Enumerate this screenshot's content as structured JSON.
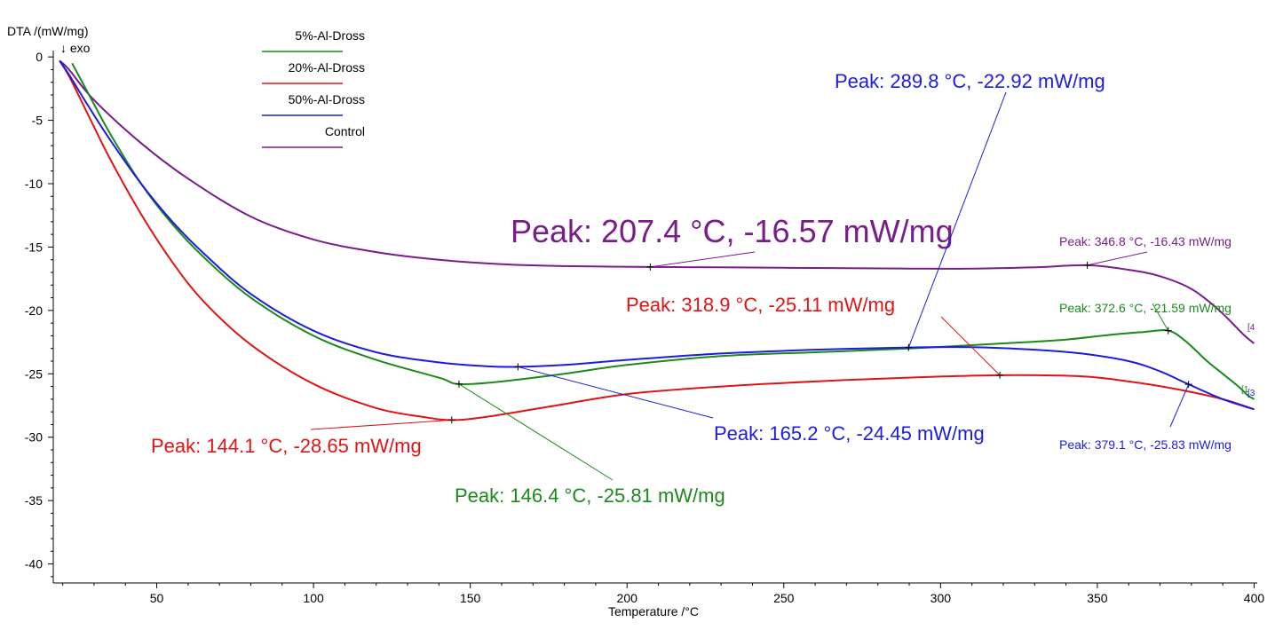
{
  "chart_data": {
    "type": "line",
    "title": "",
    "ylabel": "DTA /(mW/mg)",
    "ylabel_note": "↓ exo",
    "xlabel": "Temperature /°C",
    "xlim": [
      17,
      401
    ],
    "ylim": [
      -41.5,
      0.5
    ],
    "x_ticks": [
      50,
      100,
      150,
      200,
      250,
      300,
      350,
      400
    ],
    "y_ticks": [
      0,
      -5,
      -10,
      -15,
      -20,
      -25,
      -30,
      -35,
      -40
    ],
    "legend_position": "top-left",
    "series": [
      {
        "name": "5%-Al-Dross",
        "color": "#1a8a1a",
        "x": [
          23,
          28,
          35,
          45,
          55,
          65,
          80,
          100,
          120,
          140,
          146.4,
          160,
          180,
          200,
          230,
          260,
          290,
          320,
          340,
          355,
          365,
          372.6,
          378,
          385,
          390,
          395,
          398,
          400
        ],
        "y": [
          -0.5,
          -2.8,
          -6,
          -10,
          -13.2,
          -15.8,
          -19,
          -22,
          -23.9,
          -25.3,
          -25.81,
          -25.6,
          -25,
          -24.3,
          -23.6,
          -23.3,
          -23.0,
          -22.6,
          -22.3,
          -21.9,
          -21.7,
          -21.59,
          -22.4,
          -24.0,
          -25.0,
          -26.0,
          -26.7,
          -27.0
        ]
      },
      {
        "name": "20%-Al-Dross",
        "color": "#e01414",
        "x": [
          19,
          22,
          28,
          35,
          45,
          55,
          65,
          80,
          100,
          120,
          135,
          144.1,
          155,
          175,
          200,
          230,
          260,
          290,
          318.9,
          345,
          360,
          375,
          390,
          400
        ],
        "y": [
          -0.3,
          -1.5,
          -4.5,
          -8,
          -12.4,
          -16.2,
          -19.3,
          -22.7,
          -25.8,
          -27.7,
          -28.4,
          -28.65,
          -28.4,
          -27.6,
          -26.6,
          -26.0,
          -25.6,
          -25.3,
          -25.11,
          -25.2,
          -25.6,
          -26.2,
          -27.0,
          -27.8
        ]
      },
      {
        "name": "50%-Al-Dross",
        "color": "#1c1ce0",
        "x": [
          19,
          22,
          28,
          35,
          45,
          55,
          65,
          80,
          100,
          120,
          140,
          155,
          165.2,
          180,
          200,
          230,
          260,
          289.8,
          310,
          330,
          345,
          360,
          370,
          379.1,
          390,
          400
        ],
        "y": [
          -0.3,
          -1.4,
          -3.8,
          -6.5,
          -10,
          -13,
          -15.5,
          -18.7,
          -21.6,
          -23.3,
          -24.1,
          -24.4,
          -24.45,
          -24.3,
          -23.9,
          -23.4,
          -23.1,
          -22.92,
          -22.9,
          -23.1,
          -23.4,
          -24.0,
          -24.8,
          -25.83,
          -27.0,
          -27.8
        ]
      },
      {
        "name": "Control",
        "color": "#7a1c8a",
        "x": [
          19,
          22,
          30,
          45,
          60,
          80,
          100,
          120,
          140,
          160,
          180,
          207.4,
          230,
          260,
          290,
          310,
          330,
          346.8,
          360,
          370,
          380,
          388,
          393,
          397,
          400
        ],
        "y": [
          -0.3,
          -1.0,
          -3.4,
          -6.8,
          -9.6,
          -12.6,
          -14.4,
          -15.4,
          -16.0,
          -16.35,
          -16.5,
          -16.57,
          -16.6,
          -16.65,
          -16.7,
          -16.7,
          -16.6,
          -16.43,
          -16.8,
          -17.3,
          -18.3,
          -19.8,
          -21.0,
          -22.0,
          -22.6
        ]
      }
    ],
    "annotations": [
      {
        "text": "Peak: 144.1 °C, -28.65 mW/mg",
        "series": "20%-Al-Dross",
        "x": 144.1,
        "y": -28.65,
        "color": "#e01414"
      },
      {
        "text": "Peak: 146.4 °C, -25.81 mW/mg",
        "series": "5%-Al-Dross",
        "x": 146.4,
        "y": -25.81,
        "color": "#1a8a1a"
      },
      {
        "text": "Peak: 165.2 °C, -24.45 mW/mg",
        "series": "50%-Al-Dross",
        "x": 165.2,
        "y": -24.45,
        "color": "#1c1ce0"
      },
      {
        "text": "Peak: 207.4 °C, -16.57 mW/mg",
        "series": "Control",
        "x": 207.4,
        "y": -16.57,
        "color": "#7a1c8a"
      },
      {
        "text": "Peak: 289.8 °C, -22.92 mW/mg",
        "series": "50%-Al-Dross",
        "x": 289.8,
        "y": -22.92,
        "color": "#1c1ce0"
      },
      {
        "text": "Peak: 318.9 °C, -25.11 mW/mg",
        "series": "20%-Al-Dross",
        "x": 318.9,
        "y": -25.11,
        "color": "#e01414"
      },
      {
        "text": "Peak: 346.8 °C, -16.43 mW/mg",
        "series": "Control",
        "x": 346.8,
        "y": -16.43,
        "color": "#7a1c8a"
      },
      {
        "text": "Peak: 372.6 °C, -21.59 mW/mg",
        "series": "5%-Al-Dross",
        "x": 372.6,
        "y": -21.59,
        "color": "#1a8a1a"
      },
      {
        "text": "Peak: 379.1 °C, -25.83 mW/mg",
        "series": "50%-Al-Dross",
        "x": 379.1,
        "y": -25.83,
        "color": "#1c1ce0"
      }
    ],
    "end_markers": [
      {
        "text": "[4",
        "color": "#7a1c8a"
      },
      {
        "text": "[1",
        "color": "#1a8a1a"
      },
      {
        "text": "[3",
        "color": "#1c1ce0"
      }
    ]
  }
}
